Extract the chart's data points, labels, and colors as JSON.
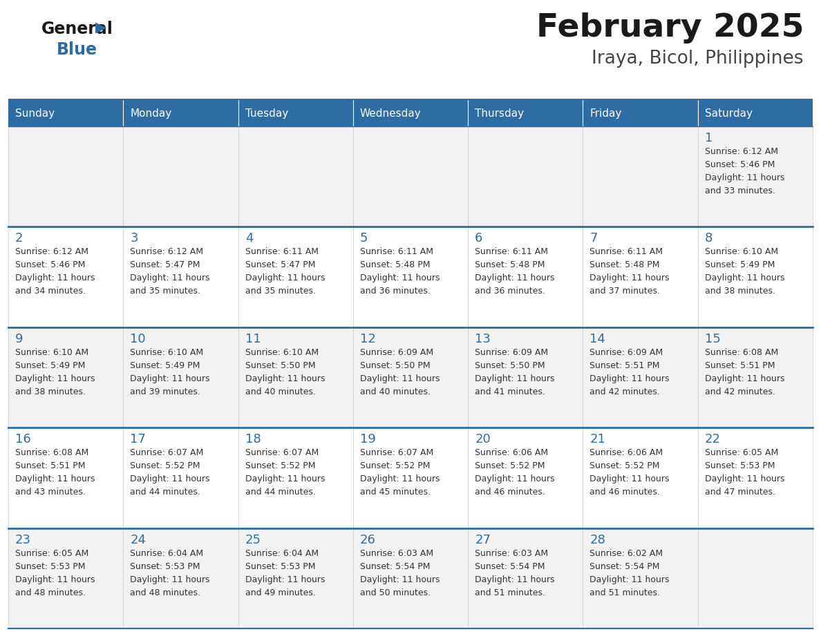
{
  "title": "February 2025",
  "subtitle": "Iraya, Bicol, Philippines",
  "header_bg": "#2E6DA4",
  "header_text_color": "#FFFFFF",
  "cell_bg_odd": "#F2F2F2",
  "cell_bg_even": "#FFFFFF",
  "day_headers": [
    "Sunday",
    "Monday",
    "Tuesday",
    "Wednesday",
    "Thursday",
    "Friday",
    "Saturday"
  ],
  "title_color": "#1a1a1a",
  "subtitle_color": "#444444",
  "day_num_color": "#2E6DA4",
  "cell_text_color": "#333333",
  "border_color": "#2E6DA4",
  "row_border_color": "#2E6DA4",
  "cell_border_color": "#CCCCCC",
  "logo_text_color": "#1a1a1a",
  "logo_blue_color": "#2E6DA4",
  "calendar_data": [
    [
      null,
      null,
      null,
      null,
      null,
      null,
      {
        "day": 1,
        "sunrise": "6:12 AM",
        "sunset": "5:46 PM",
        "daylight": "11 hours\nand 33 minutes."
      }
    ],
    [
      {
        "day": 2,
        "sunrise": "6:12 AM",
        "sunset": "5:46 PM",
        "daylight": "11 hours\nand 34 minutes."
      },
      {
        "day": 3,
        "sunrise": "6:12 AM",
        "sunset": "5:47 PM",
        "daylight": "11 hours\nand 35 minutes."
      },
      {
        "day": 4,
        "sunrise": "6:11 AM",
        "sunset": "5:47 PM",
        "daylight": "11 hours\nand 35 minutes."
      },
      {
        "day": 5,
        "sunrise": "6:11 AM",
        "sunset": "5:48 PM",
        "daylight": "11 hours\nand 36 minutes."
      },
      {
        "day": 6,
        "sunrise": "6:11 AM",
        "sunset": "5:48 PM",
        "daylight": "11 hours\nand 36 minutes."
      },
      {
        "day": 7,
        "sunrise": "6:11 AM",
        "sunset": "5:48 PM",
        "daylight": "11 hours\nand 37 minutes."
      },
      {
        "day": 8,
        "sunrise": "6:10 AM",
        "sunset": "5:49 PM",
        "daylight": "11 hours\nand 38 minutes."
      }
    ],
    [
      {
        "day": 9,
        "sunrise": "6:10 AM",
        "sunset": "5:49 PM",
        "daylight": "11 hours\nand 38 minutes."
      },
      {
        "day": 10,
        "sunrise": "6:10 AM",
        "sunset": "5:49 PM",
        "daylight": "11 hours\nand 39 minutes."
      },
      {
        "day": 11,
        "sunrise": "6:10 AM",
        "sunset": "5:50 PM",
        "daylight": "11 hours\nand 40 minutes."
      },
      {
        "day": 12,
        "sunrise": "6:09 AM",
        "sunset": "5:50 PM",
        "daylight": "11 hours\nand 40 minutes."
      },
      {
        "day": 13,
        "sunrise": "6:09 AM",
        "sunset": "5:50 PM",
        "daylight": "11 hours\nand 41 minutes."
      },
      {
        "day": 14,
        "sunrise": "6:09 AM",
        "sunset": "5:51 PM",
        "daylight": "11 hours\nand 42 minutes."
      },
      {
        "day": 15,
        "sunrise": "6:08 AM",
        "sunset": "5:51 PM",
        "daylight": "11 hours\nand 42 minutes."
      }
    ],
    [
      {
        "day": 16,
        "sunrise": "6:08 AM",
        "sunset": "5:51 PM",
        "daylight": "11 hours\nand 43 minutes."
      },
      {
        "day": 17,
        "sunrise": "6:07 AM",
        "sunset": "5:52 PM",
        "daylight": "11 hours\nand 44 minutes."
      },
      {
        "day": 18,
        "sunrise": "6:07 AM",
        "sunset": "5:52 PM",
        "daylight": "11 hours\nand 44 minutes."
      },
      {
        "day": 19,
        "sunrise": "6:07 AM",
        "sunset": "5:52 PM",
        "daylight": "11 hours\nand 45 minutes."
      },
      {
        "day": 20,
        "sunrise": "6:06 AM",
        "sunset": "5:52 PM",
        "daylight": "11 hours\nand 46 minutes."
      },
      {
        "day": 21,
        "sunrise": "6:06 AM",
        "sunset": "5:52 PM",
        "daylight": "11 hours\nand 46 minutes."
      },
      {
        "day": 22,
        "sunrise": "6:05 AM",
        "sunset": "5:53 PM",
        "daylight": "11 hours\nand 47 minutes."
      }
    ],
    [
      {
        "day": 23,
        "sunrise": "6:05 AM",
        "sunset": "5:53 PM",
        "daylight": "11 hours\nand 48 minutes."
      },
      {
        "day": 24,
        "sunrise": "6:04 AM",
        "sunset": "5:53 PM",
        "daylight": "11 hours\nand 48 minutes."
      },
      {
        "day": 25,
        "sunrise": "6:04 AM",
        "sunset": "5:53 PM",
        "daylight": "11 hours\nand 49 minutes."
      },
      {
        "day": 26,
        "sunrise": "6:03 AM",
        "sunset": "5:54 PM",
        "daylight": "11 hours\nand 50 minutes."
      },
      {
        "day": 27,
        "sunrise": "6:03 AM",
        "sunset": "5:54 PM",
        "daylight": "11 hours\nand 51 minutes."
      },
      {
        "day": 28,
        "sunrise": "6:02 AM",
        "sunset": "5:54 PM",
        "daylight": "11 hours\nand 51 minutes."
      },
      null
    ]
  ]
}
